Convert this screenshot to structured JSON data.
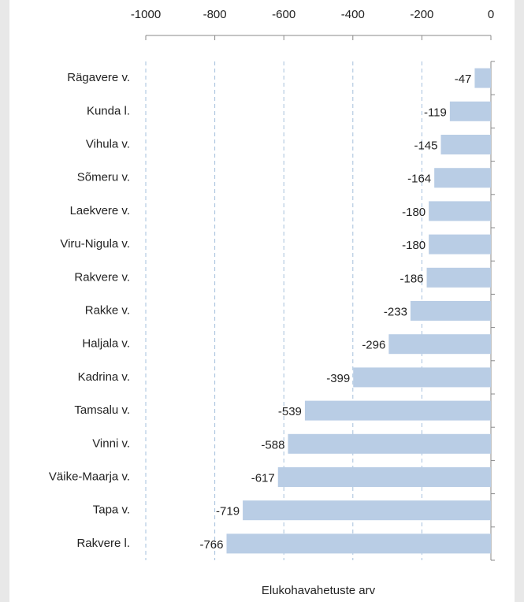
{
  "chart_data": {
    "type": "bar",
    "orientation": "horizontal",
    "categories": [
      "Rägavere v.",
      "Kunda l.",
      "Vihula v.",
      "Sõmeru v.",
      "Laekvere v.",
      "Viru-Nigula v.",
      "Rakvere v.",
      "Rakke v.",
      "Haljala v.",
      "Kadrina v.",
      "Tamsalu v.",
      "Vinni v.",
      "Väike-Maarja v.",
      "Tapa v.",
      "Rakvere l."
    ],
    "values": [
      -47,
      -119,
      -145,
      -164,
      -180,
      -180,
      -186,
      -233,
      -296,
      -399,
      -539,
      -588,
      -617,
      -719,
      -766
    ],
    "color": "#b9cde5",
    "xlabel": "Elukohavahetuste arv",
    "xlim": [
      -1000,
      0
    ],
    "xticks": [
      -1000,
      -800,
      -600,
      -400,
      -200,
      0
    ],
    "grid": true,
    "grid_color": "#a6c0dc"
  }
}
